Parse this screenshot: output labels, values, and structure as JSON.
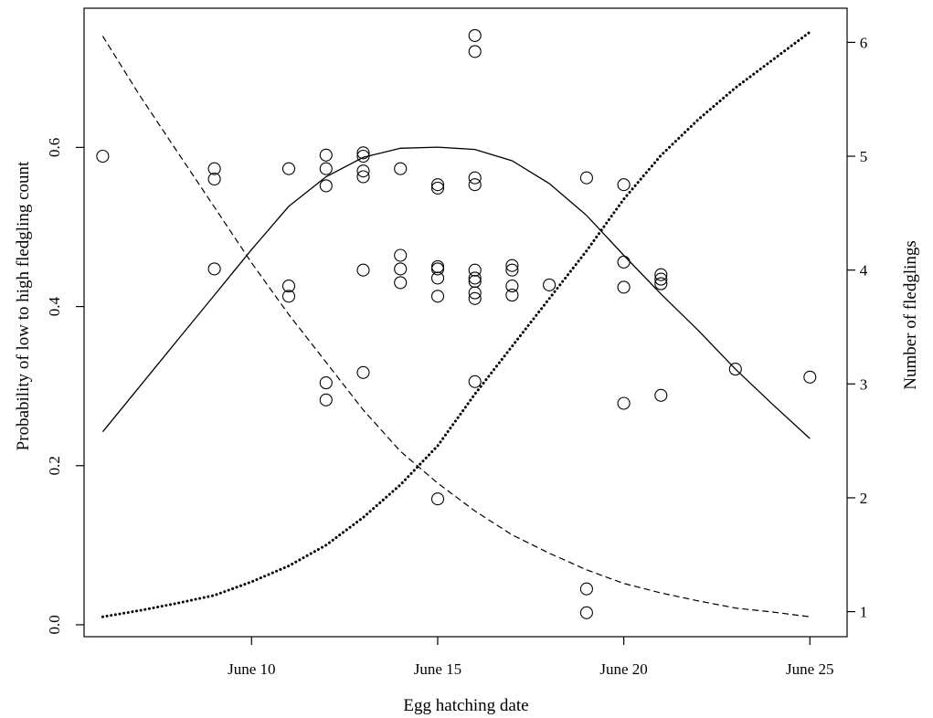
{
  "chart_data": {
    "type": "scatter",
    "title": "",
    "xlabel": "Egg hatching date",
    "ylabel_left": "Probability of low to high fledgling count",
    "ylabel_right": "Number of fledglings",
    "x_unit": "June day",
    "xlim": [
      5.5,
      26
    ],
    "ylim_left": [
      -0.015,
      0.775
    ],
    "ylim_right": [
      0.78,
      6.3
    ],
    "grid": false,
    "x_ticks": [
      {
        "value": 10,
        "label": "June 10"
      },
      {
        "value": 15,
        "label": "June 15"
      },
      {
        "value": 20,
        "label": "June 20"
      },
      {
        "value": 25,
        "label": "June 25"
      }
    ],
    "y_left_ticks": [
      {
        "value": 0.0,
        "label": "0.0"
      },
      {
        "value": 0.2,
        "label": "0.2"
      },
      {
        "value": 0.4,
        "label": "0.4"
      },
      {
        "value": 0.6,
        "label": "0.6"
      }
    ],
    "y_right_ticks": [
      {
        "value": 1,
        "label": "1"
      },
      {
        "value": 2,
        "label": "2"
      },
      {
        "value": 3,
        "label": "3"
      },
      {
        "value": 4,
        "label": "4"
      },
      {
        "value": 5,
        "label": "5"
      },
      {
        "value": 6,
        "label": "6"
      }
    ],
    "points": [
      {
        "x": 6,
        "y": 5.0
      },
      {
        "x": 9,
        "y": 4.89
      },
      {
        "x": 9,
        "y": 4.8
      },
      {
        "x": 9,
        "y": 4.01
      },
      {
        "x": 11,
        "y": 4.89
      },
      {
        "x": 11,
        "y": 3.86
      },
      {
        "x": 11,
        "y": 3.77
      },
      {
        "x": 12,
        "y": 5.01
      },
      {
        "x": 12,
        "y": 4.89
      },
      {
        "x": 12,
        "y": 4.74
      },
      {
        "x": 12,
        "y": 3.01
      },
      {
        "x": 12,
        "y": 2.86
      },
      {
        "x": 13,
        "y": 5.03
      },
      {
        "x": 13,
        "y": 5.0
      },
      {
        "x": 13,
        "y": 4.87
      },
      {
        "x": 13,
        "y": 4.82
      },
      {
        "x": 13,
        "y": 4.0
      },
      {
        "x": 13,
        "y": 3.1
      },
      {
        "x": 14,
        "y": 4.89
      },
      {
        "x": 14,
        "y": 4.13
      },
      {
        "x": 14,
        "y": 4.01
      },
      {
        "x": 14,
        "y": 3.89
      },
      {
        "x": 15,
        "y": 4.75
      },
      {
        "x": 15,
        "y": 4.72
      },
      {
        "x": 15,
        "y": 4.03
      },
      {
        "x": 15,
        "y": 4.01
      },
      {
        "x": 15,
        "y": 3.93
      },
      {
        "x": 15,
        "y": 3.77
      },
      {
        "x": 15,
        "y": 1.99
      },
      {
        "x": 16,
        "y": 6.06
      },
      {
        "x": 16,
        "y": 5.92
      },
      {
        "x": 16,
        "y": 4.81
      },
      {
        "x": 16,
        "y": 4.75
      },
      {
        "x": 16,
        "y": 4.0
      },
      {
        "x": 16,
        "y": 3.93
      },
      {
        "x": 16,
        "y": 3.9
      },
      {
        "x": 16,
        "y": 3.8
      },
      {
        "x": 16,
        "y": 3.75
      },
      {
        "x": 16,
        "y": 3.02
      },
      {
        "x": 17,
        "y": 4.04
      },
      {
        "x": 17,
        "y": 4.0
      },
      {
        "x": 17,
        "y": 3.86
      },
      {
        "x": 17,
        "y": 3.78
      },
      {
        "x": 18,
        "y": 3.87
      },
      {
        "x": 19,
        "y": 4.81
      },
      {
        "x": 19,
        "y": 1.2
      },
      {
        "x": 19,
        "y": 0.99
      },
      {
        "x": 20,
        "y": 4.75
      },
      {
        "x": 20,
        "y": 4.07
      },
      {
        "x": 20,
        "y": 3.85
      },
      {
        "x": 20,
        "y": 2.83
      },
      {
        "x": 21,
        "y": 3.96
      },
      {
        "x": 21,
        "y": 3.92
      },
      {
        "x": 21,
        "y": 3.88
      },
      {
        "x": 21,
        "y": 2.9
      },
      {
        "x": 23,
        "y": 3.13
      },
      {
        "x": 25,
        "y": 3.06
      }
    ],
    "series": [
      {
        "style": "solid",
        "axis": "right",
        "x": [
          6,
          7,
          8,
          9,
          10,
          11,
          12,
          13,
          14,
          15,
          16,
          17,
          18,
          19,
          20,
          21,
          22,
          23,
          24,
          25
        ],
        "y": [
          2.58,
          2.98,
          3.38,
          3.78,
          4.18,
          4.56,
          4.82,
          4.99,
          5.07,
          5.08,
          5.06,
          4.96,
          4.76,
          4.48,
          4.13,
          3.79,
          3.47,
          3.13,
          2.82,
          2.52
        ]
      },
      {
        "style": "dashed",
        "axis": "left",
        "x": [
          6,
          7,
          8,
          9,
          10,
          11,
          12,
          13,
          14,
          15,
          16,
          17,
          18,
          19,
          20,
          21,
          22,
          23,
          24,
          25
        ],
        "y": [
          0.74,
          0.665,
          0.595,
          0.525,
          0.455,
          0.39,
          0.33,
          0.27,
          0.218,
          0.178,
          0.143,
          0.113,
          0.09,
          0.069,
          0.052,
          0.04,
          0.03,
          0.021,
          0.016,
          0.01
        ]
      },
      {
        "style": "dotted",
        "axis": "left",
        "x": [
          6,
          7,
          8,
          9,
          10,
          11,
          12,
          13,
          14,
          15,
          16,
          17,
          18,
          19,
          20,
          21,
          22,
          23,
          24,
          25
        ],
        "y": [
          0.01,
          0.018,
          0.027,
          0.037,
          0.054,
          0.074,
          0.1,
          0.135,
          0.176,
          0.225,
          0.29,
          0.35,
          0.41,
          0.47,
          0.535,
          0.59,
          0.635,
          0.675,
          0.71,
          0.745
        ]
      }
    ]
  }
}
